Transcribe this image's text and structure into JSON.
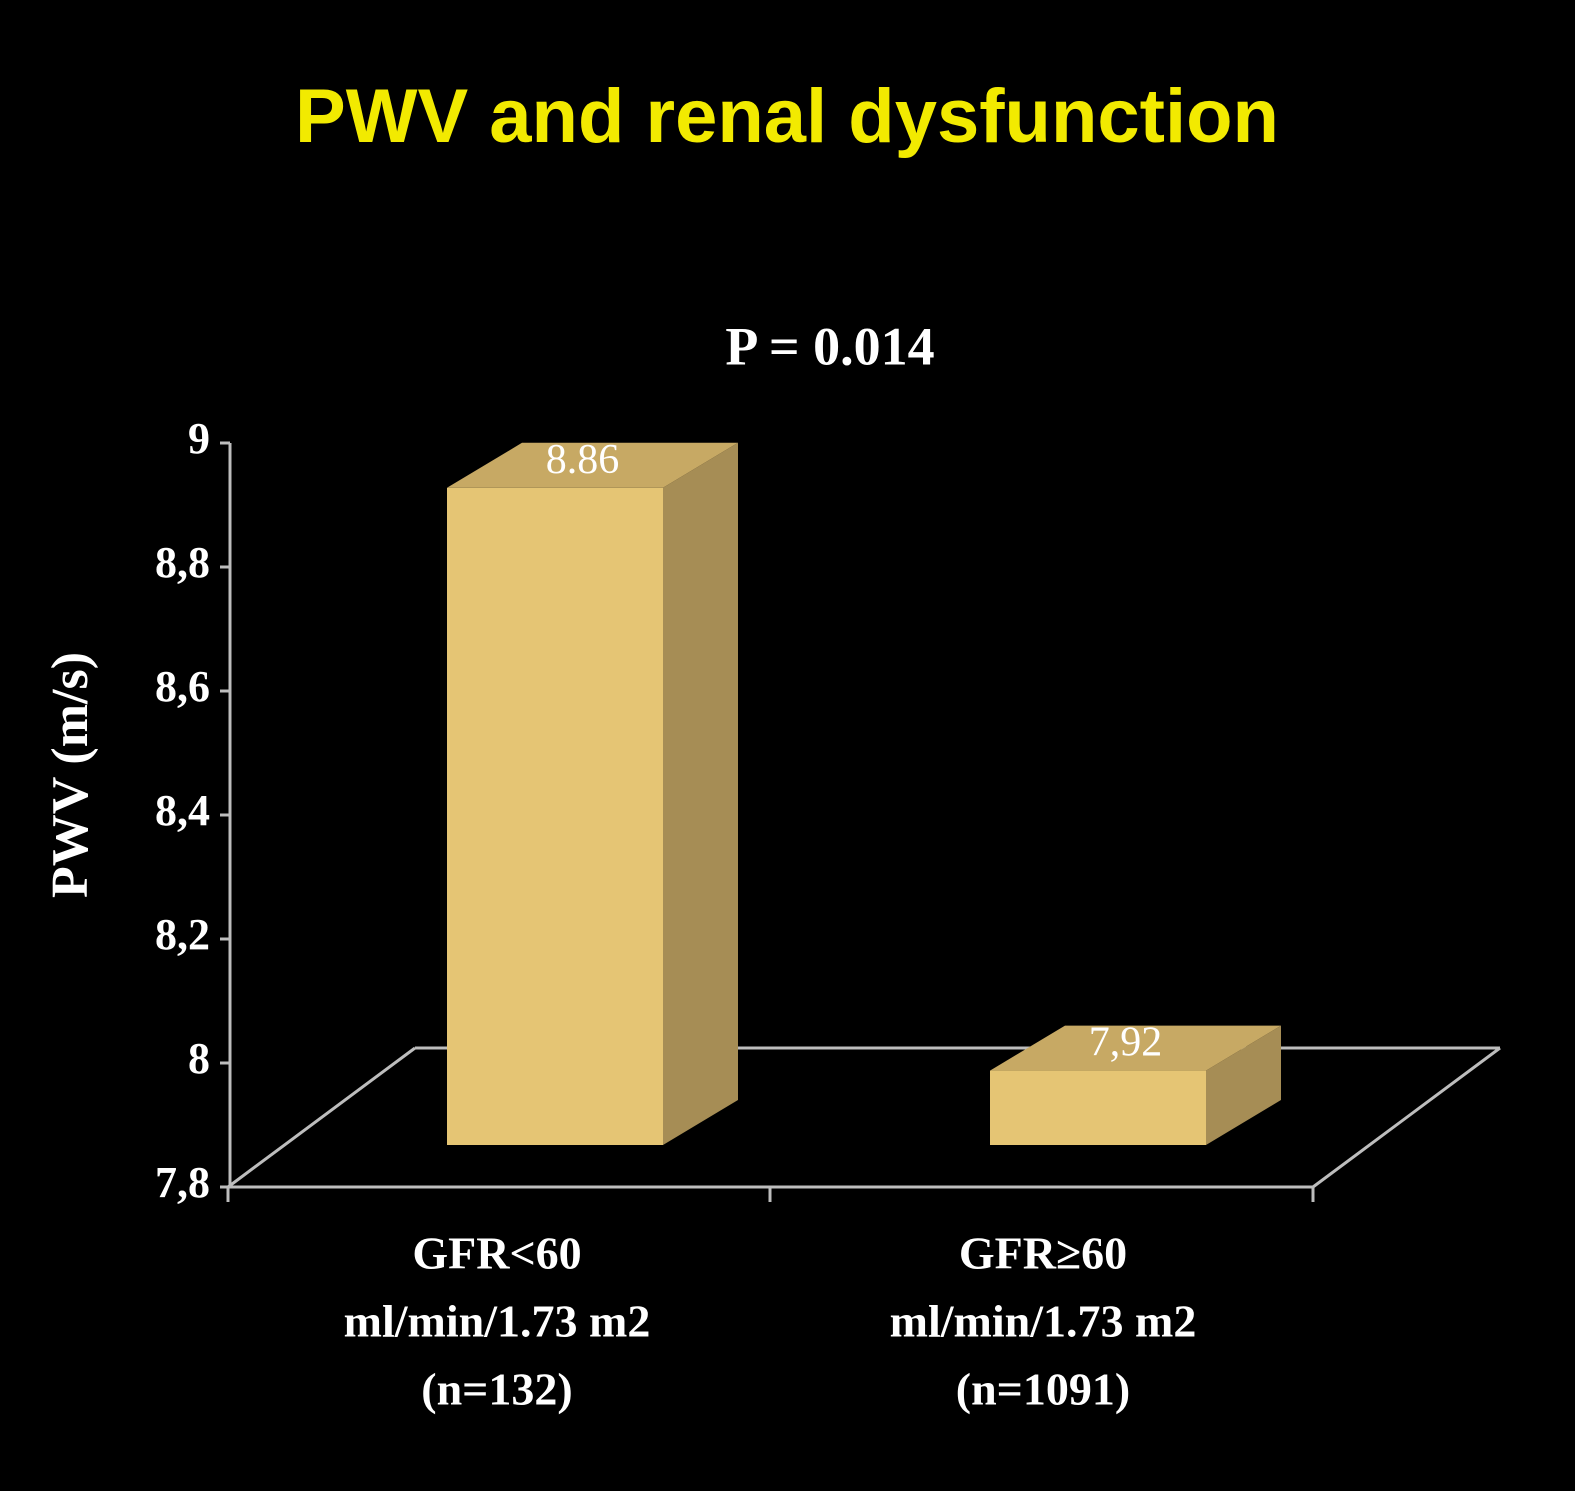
{
  "chart_data": {
    "type": "bar3d",
    "title": "PWV and renal dysfunction",
    "annotation": "P = 0.014",
    "y_label": "PWV (m/s)",
    "categories": [
      [
        "GFR<60",
        "ml/min/1.73 m2",
        "(n=132)"
      ],
      [
        "GFR≥60",
        "ml/min/1.73 m2",
        "(n=1091)"
      ]
    ],
    "values": [
      8.86,
      7.92
    ],
    "value_labels": [
      "8.86",
      "7,92"
    ],
    "color": "#e5c574",
    "ylim": [
      7.8,
      9
    ],
    "yticks": [
      {
        "value": 7.8,
        "label": "7,8"
      },
      8,
      {
        "value": 8.2,
        "label": "8,2"
      },
      {
        "value": 8.4,
        "label": "8,4"
      },
      {
        "value": 8.6,
        "label": "8,6"
      },
      {
        "value": 8.8,
        "label": "8,8"
      },
      9
    ]
  }
}
